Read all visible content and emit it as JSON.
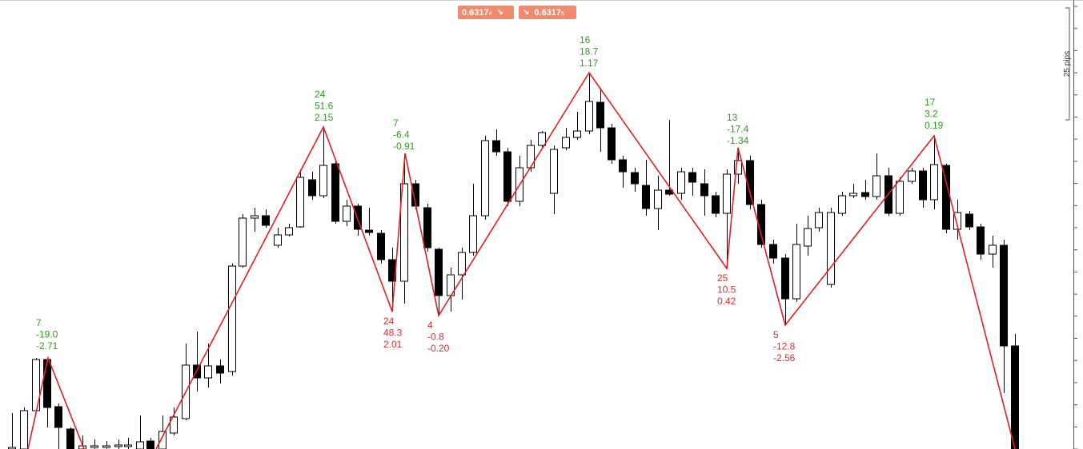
{
  "toolbar": {
    "buttons": [
      {
        "price": "0.6317",
        "pipette": "4"
      },
      {
        "price": "0.6317",
        "pipette": "6"
      }
    ]
  },
  "ruler": {
    "label": "25 pips"
  },
  "pivots": [
    {
      "kind": "high",
      "lines": [
        "7",
        "-19.0",
        "-2.71"
      ]
    },
    {
      "kind": "high",
      "lines": [
        "24",
        "51.6",
        "2.15"
      ]
    },
    {
      "kind": "low",
      "lines": [
        "24",
        "48.3",
        "2.01"
      ]
    },
    {
      "kind": "high",
      "lines": [
        "7",
        "-6.4",
        "-0.91"
      ]
    },
    {
      "kind": "low",
      "lines": [
        "4",
        "-0.8",
        "-0.20"
      ]
    },
    {
      "kind": "high",
      "lines": [
        "16",
        "18.7",
        "1.17"
      ]
    },
    {
      "kind": "low",
      "lines": [
        "25",
        "10.5",
        "0.42"
      ]
    },
    {
      "kind": "high",
      "lines": [
        "13",
        "-17.4",
        "-1.34"
      ]
    },
    {
      "kind": "low",
      "lines": [
        "5",
        "-12.8",
        "-2.56"
      ]
    },
    {
      "kind": "high",
      "lines": [
        "17",
        "3.2",
        "0.19"
      ]
    }
  ]
}
